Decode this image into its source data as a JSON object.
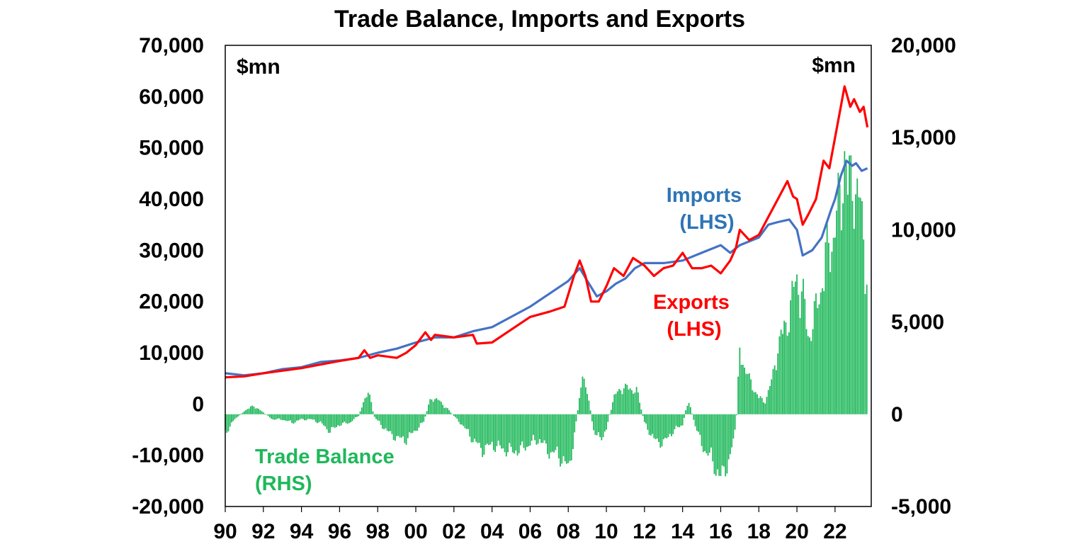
{
  "chart_data": {
    "type": "bar",
    "title": "Trade Balance, Imports and Exports",
    "left_axis": {
      "unit": "$mn",
      "ylim": [
        -20000,
        70000
      ],
      "ticks": [
        70000,
        60000,
        50000,
        40000,
        30000,
        20000,
        10000,
        0,
        -10000,
        -20000
      ],
      "tick_labels": [
        "70,000",
        "60,000",
        "50,000",
        "40,000",
        "30,000",
        "20,000",
        "10,000",
        "0",
        "-10,000",
        "-20,000"
      ]
    },
    "right_axis": {
      "unit": "$mn",
      "ylim": [
        -5000,
        20000
      ],
      "ticks": [
        20000,
        15000,
        10000,
        5000,
        0,
        -5000
      ],
      "tick_labels": [
        "20,000",
        "15,000",
        "10,000",
        "5,000",
        "0",
        "-5,000"
      ]
    },
    "x_axis": {
      "xlim": [
        1990,
        2023.9
      ],
      "ticks": [
        1990,
        1992,
        1994,
        1996,
        1998,
        2000,
        2002,
        2004,
        2006,
        2008,
        2010,
        2012,
        2014,
        2016,
        2018,
        2020,
        2022
      ],
      "tick_labels": [
        "90",
        "92",
        "94",
        "96",
        "98",
        "00",
        "02",
        "04",
        "06",
        "08",
        "10",
        "12",
        "14",
        "16",
        "18",
        "20",
        "22"
      ]
    },
    "grid": false,
    "series": [
      {
        "name": "Imports (LHS)",
        "axis": "left",
        "color": "#4472C4",
        "type": "line",
        "points": [
          [
            1990.0,
            6000
          ],
          [
            1991.0,
            5600
          ],
          [
            1992.0,
            6000
          ],
          [
            1993.0,
            6800
          ],
          [
            1994.0,
            7200
          ],
          [
            1995.0,
            8200
          ],
          [
            1996.0,
            8500
          ],
          [
            1997.0,
            9000
          ],
          [
            1998.0,
            10000
          ],
          [
            1999.0,
            10800
          ],
          [
            2000.0,
            12000
          ],
          [
            2001.0,
            13000
          ],
          [
            2002.0,
            13000
          ],
          [
            2003.0,
            14200
          ],
          [
            2004.0,
            15000
          ],
          [
            2005.0,
            17000
          ],
          [
            2006.0,
            19000
          ],
          [
            2007.0,
            21500
          ],
          [
            2008.0,
            24000
          ],
          [
            2008.6,
            26500
          ],
          [
            2009.0,
            24000
          ],
          [
            2009.5,
            21000
          ],
          [
            2010.0,
            22000
          ],
          [
            2010.5,
            23500
          ],
          [
            2011.0,
            24500
          ],
          [
            2011.5,
            26500
          ],
          [
            2012.0,
            27500
          ],
          [
            2013.0,
            27500
          ],
          [
            2014.0,
            28000
          ],
          [
            2015.0,
            29500
          ],
          [
            2016.0,
            31000
          ],
          [
            2016.5,
            29500
          ],
          [
            2017.0,
            31000
          ],
          [
            2018.0,
            32500
          ],
          [
            2018.5,
            35000
          ],
          [
            2019.0,
            35500
          ],
          [
            2019.6,
            36000
          ],
          [
            2020.0,
            34000
          ],
          [
            2020.3,
            29000
          ],
          [
            2020.8,
            30000
          ],
          [
            2021.3,
            32500
          ],
          [
            2021.8,
            38000
          ],
          [
            2022.0,
            40000
          ],
          [
            2022.3,
            44500
          ],
          [
            2022.6,
            47500
          ],
          [
            2022.9,
            46500
          ],
          [
            2023.1,
            47000
          ],
          [
            2023.4,
            45500
          ],
          [
            2023.7,
            46000
          ]
        ]
      },
      {
        "name": "Exports (LHS)",
        "axis": "left",
        "color": "#FF0000",
        "type": "line",
        "points": [
          [
            1990.0,
            5200
          ],
          [
            1991.0,
            5400
          ],
          [
            1992.0,
            6000
          ],
          [
            1993.0,
            6500
          ],
          [
            1994.0,
            7000
          ],
          [
            1995.0,
            7700
          ],
          [
            1996.0,
            8400
          ],
          [
            1997.0,
            9000
          ],
          [
            1997.3,
            10500
          ],
          [
            1997.6,
            9000
          ],
          [
            1998.0,
            9500
          ],
          [
            1999.0,
            9000
          ],
          [
            1999.5,
            10000
          ],
          [
            2000.0,
            11500
          ],
          [
            2000.5,
            14000
          ],
          [
            2000.8,
            12500
          ],
          [
            2001.0,
            13500
          ],
          [
            2002.0,
            13000
          ],
          [
            2003.0,
            13500
          ],
          [
            2003.2,
            11800
          ],
          [
            2004.0,
            12000
          ],
          [
            2005.0,
            14500
          ],
          [
            2006.0,
            17000
          ],
          [
            2007.0,
            18000
          ],
          [
            2007.8,
            19000
          ],
          [
            2008.3,
            25000
          ],
          [
            2008.6,
            28000
          ],
          [
            2008.9,
            25000
          ],
          [
            2009.2,
            20000
          ],
          [
            2009.6,
            20000
          ],
          [
            2010.0,
            23000
          ],
          [
            2010.4,
            26500
          ],
          [
            2010.9,
            25000
          ],
          [
            2011.4,
            28500
          ],
          [
            2012.0,
            27000
          ],
          [
            2012.5,
            25000
          ],
          [
            2013.0,
            26500
          ],
          [
            2013.5,
            27000
          ],
          [
            2014.0,
            29500
          ],
          [
            2014.5,
            26500
          ],
          [
            2015.0,
            26500
          ],
          [
            2015.5,
            27000
          ],
          [
            2016.0,
            25500
          ],
          [
            2016.5,
            28000
          ],
          [
            2016.8,
            30500
          ],
          [
            2017.0,
            34000
          ],
          [
            2017.5,
            32000
          ],
          [
            2018.0,
            33000
          ],
          [
            2018.5,
            36500
          ],
          [
            2019.0,
            40000
          ],
          [
            2019.5,
            43500
          ],
          [
            2019.8,
            40500
          ],
          [
            2020.0,
            40000
          ],
          [
            2020.3,
            35000
          ],
          [
            2020.6,
            37000
          ],
          [
            2021.0,
            40000
          ],
          [
            2021.4,
            47500
          ],
          [
            2021.7,
            46000
          ],
          [
            2022.0,
            52000
          ],
          [
            2022.3,
            58000
          ],
          [
            2022.5,
            62000
          ],
          [
            2022.8,
            58000
          ],
          [
            2023.0,
            59500
          ],
          [
            2023.3,
            57000
          ],
          [
            2023.5,
            58000
          ],
          [
            2023.7,
            54000
          ]
        ]
      },
      {
        "name": "Trade Balance (RHS)",
        "axis": "right",
        "color": "#1FB85A",
        "type": "bar",
        "points": [
          [
            1990.0,
            -1100
          ],
          [
            1990.5,
            -300
          ],
          [
            1991.0,
            200
          ],
          [
            1991.5,
            500
          ],
          [
            1992.0,
            100
          ],
          [
            1992.5,
            -300
          ],
          [
            1993.0,
            -300
          ],
          [
            1993.5,
            -500
          ],
          [
            1994.0,
            -300
          ],
          [
            1994.5,
            -300
          ],
          [
            1995.0,
            -500
          ],
          [
            1995.5,
            -1000
          ],
          [
            1996.0,
            -600
          ],
          [
            1996.5,
            -500
          ],
          [
            1997.0,
            -100
          ],
          [
            1997.2,
            500
          ],
          [
            1997.5,
            1500
          ],
          [
            1997.8,
            -100
          ],
          [
            1998.0,
            -400
          ],
          [
            1998.5,
            -1000
          ],
          [
            1999.0,
            -1400
          ],
          [
            1999.5,
            -1500
          ],
          [
            2000.0,
            -900
          ],
          [
            2000.4,
            -500
          ],
          [
            2000.8,
            1000
          ],
          [
            2001.2,
            800
          ],
          [
            2001.6,
            400
          ],
          [
            2002.0,
            -100
          ],
          [
            2002.5,
            -700
          ],
          [
            2003.0,
            -1500
          ],
          [
            2003.5,
            -2100
          ],
          [
            2004.0,
            -1800
          ],
          [
            2004.5,
            -2000
          ],
          [
            2005.0,
            -2200
          ],
          [
            2005.5,
            -2100
          ],
          [
            2006.0,
            -1700
          ],
          [
            2006.5,
            -1500
          ],
          [
            2007.0,
            -2200
          ],
          [
            2007.5,
            -2400
          ],
          [
            2008.0,
            -3200
          ],
          [
            2008.3,
            -1500
          ],
          [
            2008.7,
            2000
          ],
          [
            2009.0,
            1500
          ],
          [
            2009.3,
            -800
          ],
          [
            2009.7,
            -1600
          ],
          [
            2010.0,
            -800
          ],
          [
            2010.4,
            1000
          ],
          [
            2010.8,
            1600
          ],
          [
            2011.2,
            1500
          ],
          [
            2011.6,
            1400
          ],
          [
            2012.0,
            -500
          ],
          [
            2012.5,
            -1500
          ],
          [
            2013.0,
            -1700
          ],
          [
            2013.5,
            -1000
          ],
          [
            2014.0,
            -600
          ],
          [
            2014.3,
            900
          ],
          [
            2014.6,
            -400
          ],
          [
            2015.0,
            -1800
          ],
          [
            2015.5,
            -2600
          ],
          [
            2016.0,
            -3800
          ],
          [
            2016.5,
            -2500
          ],
          [
            2016.8,
            -800
          ],
          [
            2017.0,
            3700
          ],
          [
            2017.5,
            2000
          ],
          [
            2018.0,
            1000
          ],
          [
            2018.3,
            700
          ],
          [
            2018.7,
            2000
          ],
          [
            2019.0,
            4000
          ],
          [
            2019.5,
            5500
          ],
          [
            2020.0,
            8000
          ],
          [
            2020.3,
            7000
          ],
          [
            2020.6,
            4500
          ],
          [
            2021.0,
            6000
          ],
          [
            2021.5,
            9000
          ],
          [
            2022.0,
            11000
          ],
          [
            2022.3,
            12500
          ],
          [
            2022.5,
            15700
          ],
          [
            2022.7,
            13000
          ],
          [
            2023.0,
            14000
          ],
          [
            2023.3,
            12000
          ],
          [
            2023.5,
            10500
          ],
          [
            2023.7,
            8000
          ]
        ]
      }
    ],
    "annotations": {
      "imports": [
        "Imports",
        "(LHS)"
      ],
      "exports": [
        "Exports",
        "(LHS)"
      ],
      "trade_balance": [
        "Trade Balance",
        "(RHS)"
      ]
    }
  }
}
